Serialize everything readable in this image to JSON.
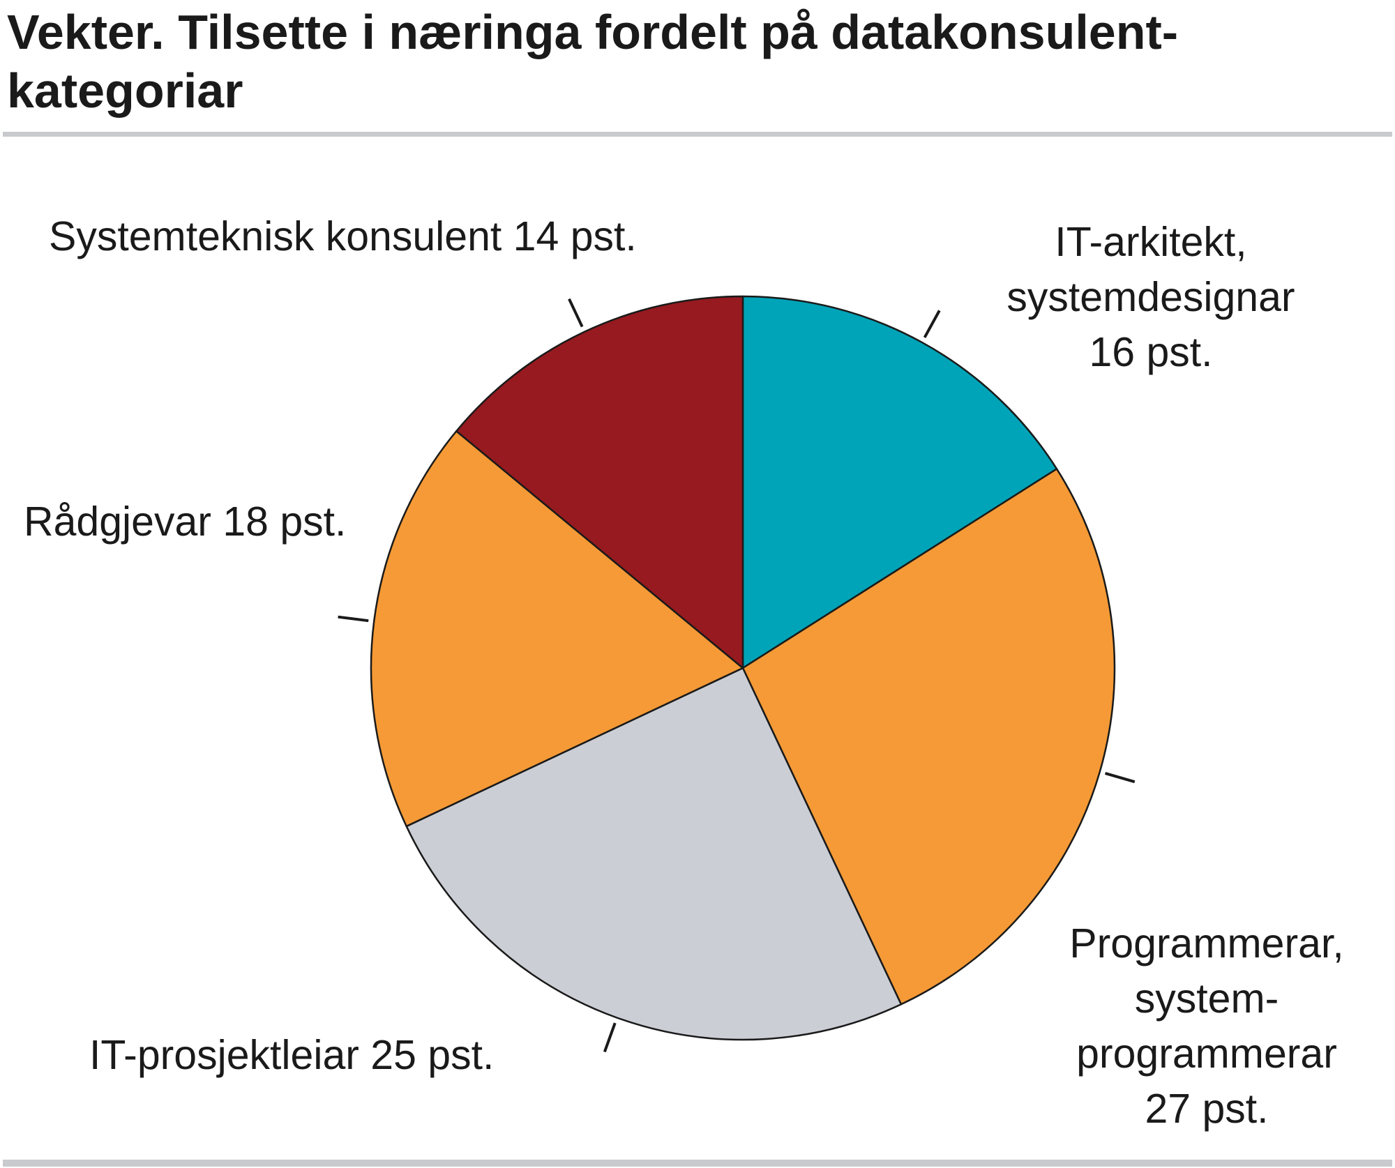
{
  "chart_data": {
    "type": "pie",
    "title": "Vekter. Tilsette i næringa fordelt på datakonsulent-kategoriar",
    "unit": "pst.",
    "slices": [
      {
        "name": "IT-arkitekt, systemdesignar",
        "value": 16,
        "display": "IT-arkitekt,\nsystemdesignar\n16 pst.",
        "color": "#00a4b8"
      },
      {
        "name": "Programmerar, systemprogrammerar",
        "value": 27,
        "display": "Programmerar,\nsystem-\nprogrammerar\n27 pst.",
        "color": "#f59a36"
      },
      {
        "name": "IT-prosjektleiar",
        "value": 25,
        "display": "IT-prosjektleiar 25 pst.",
        "color": "#cbced5"
      },
      {
        "name": "Rådgjevar",
        "value": 18,
        "display": "Rådgjevar 18 pst.",
        "color": "#f59a36"
      },
      {
        "name": "Systemteknisk konsulent",
        "value": 14,
        "display": "Systemteknisk konsulent 14 pst.",
        "color": "#961a1f"
      }
    ],
    "start_angle": "12 o'clock",
    "direction": "clockwise",
    "legend": "none"
  }
}
